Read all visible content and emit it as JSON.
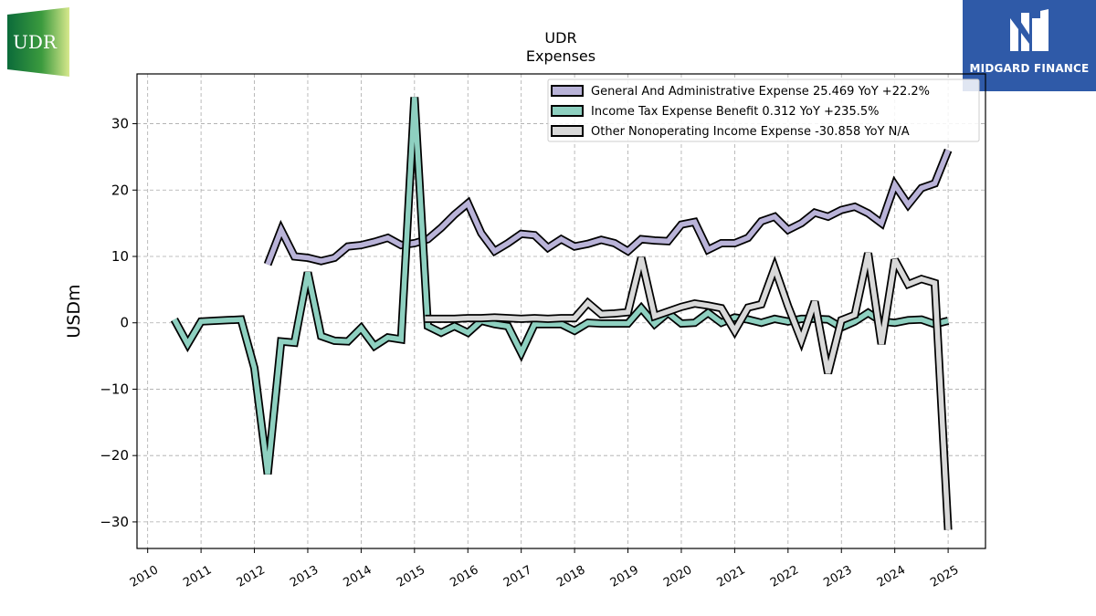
{
  "logos": {
    "left": {
      "text": "UDR",
      "colors": [
        "#0b6b3a",
        "#c9e07a"
      ]
    },
    "right": {
      "text": "MIDGARD FINANCE",
      "color": "#2f5aa8"
    }
  },
  "chart_data": {
    "type": "line",
    "title": "UDR",
    "subtitle": "Expenses",
    "ylabel": "USDm",
    "xlabel": "",
    "ylim": [
      -34,
      37.5
    ],
    "xlim": [
      2009.8,
      2025.7
    ],
    "yticks": [
      -30,
      -20,
      -10,
      0,
      10,
      20,
      30
    ],
    "xticks": [
      2010,
      2011,
      2012,
      2013,
      2014,
      2015,
      2016,
      2017,
      2018,
      2019,
      2020,
      2021,
      2022,
      2023,
      2024,
      2025
    ],
    "grid": true,
    "legend_position": "top-right",
    "series": [
      {
        "name": "General And Administrative Expense  25.469 YoY +22.2%",
        "color": "#b9b3d8",
        "points": [
          [
            2012.25,
            8.8
          ],
          [
            2012.5,
            14
          ],
          [
            2012.75,
            10
          ],
          [
            2013.0,
            9.8
          ],
          [
            2013.25,
            9.3
          ],
          [
            2013.5,
            9.8
          ],
          [
            2013.75,
            11.5
          ],
          [
            2014.0,
            11.7
          ],
          [
            2014.25,
            12.2
          ],
          [
            2014.5,
            12.8
          ],
          [
            2014.75,
            11.7
          ],
          [
            2015.0,
            12.0
          ],
          [
            2015.25,
            12.6
          ],
          [
            2015.5,
            14.3
          ],
          [
            2015.75,
            16.3
          ],
          [
            2016.0,
            18.0
          ],
          [
            2016.25,
            13.5
          ],
          [
            2016.5,
            10.8
          ],
          [
            2016.75,
            12.0
          ],
          [
            2017.0,
            13.4
          ],
          [
            2017.25,
            13.2
          ],
          [
            2017.5,
            11.3
          ],
          [
            2017.75,
            12.6
          ],
          [
            2018.0,
            11.5
          ],
          [
            2018.25,
            11.9
          ],
          [
            2018.5,
            12.5
          ],
          [
            2018.75,
            12.0
          ],
          [
            2019.0,
            10.8
          ],
          [
            2019.25,
            12.6
          ],
          [
            2019.5,
            12.4
          ],
          [
            2019.75,
            12.3
          ],
          [
            2020.0,
            14.8
          ],
          [
            2020.25,
            15.2
          ],
          [
            2020.5,
            11.0
          ],
          [
            2020.75,
            12.0
          ],
          [
            2021.0,
            12.0
          ],
          [
            2021.25,
            12.8
          ],
          [
            2021.5,
            15.3
          ],
          [
            2021.75,
            16.0
          ],
          [
            2022.0,
            14.0
          ],
          [
            2022.25,
            15.0
          ],
          [
            2022.5,
            16.6
          ],
          [
            2022.75,
            16.0
          ],
          [
            2023.0,
            17.0
          ],
          [
            2023.25,
            17.5
          ],
          [
            2023.5,
            16.5
          ],
          [
            2023.75,
            15.0
          ],
          [
            2024.0,
            20.8
          ],
          [
            2024.25,
            17.8
          ],
          [
            2024.5,
            20.3
          ],
          [
            2024.75,
            21.0
          ],
          [
            2025.0,
            26.0
          ]
        ]
      },
      {
        "name": "Income Tax Expense Benefit  0.312 YoY +235.5%",
        "color": "#8ed0c0",
        "points": [
          [
            2010.5,
            0.5
          ],
          [
            2010.75,
            -3.2
          ],
          [
            2011.0,
            0.2
          ],
          [
            2011.25,
            0.3
          ],
          [
            2011.5,
            0.4
          ],
          [
            2011.75,
            0.5
          ],
          [
            2012.0,
            -6.8
          ],
          [
            2012.25,
            -22.8
          ],
          [
            2012.5,
            -2.8
          ],
          [
            2012.75,
            -3.0
          ],
          [
            2013.0,
            7.6
          ],
          [
            2013.25,
            -2.0
          ],
          [
            2013.5,
            -2.7
          ],
          [
            2013.75,
            -2.8
          ],
          [
            2014.0,
            -0.8
          ],
          [
            2014.25,
            -3.5
          ],
          [
            2014.5,
            -2.2
          ],
          [
            2014.75,
            -2.5
          ],
          [
            2015.0,
            34.0
          ],
          [
            2015.25,
            -0.5
          ],
          [
            2015.5,
            -1.5
          ],
          [
            2015.75,
            -0.5
          ],
          [
            2016.0,
            -1.5
          ],
          [
            2016.25,
            0.3
          ],
          [
            2016.5,
            -0.2
          ],
          [
            2016.75,
            -0.5
          ],
          [
            2017.0,
            -4.5
          ],
          [
            2017.25,
            -0.2
          ],
          [
            2017.5,
            -0.2
          ],
          [
            2017.75,
            -0.2
          ],
          [
            2018.0,
            -1.2
          ],
          [
            2018.25,
            0.0
          ],
          [
            2018.5,
            -0.1
          ],
          [
            2018.75,
            -0.1
          ],
          [
            2019.0,
            -0.1
          ],
          [
            2019.25,
            2.2
          ],
          [
            2019.5,
            -0.2
          ],
          [
            2019.75,
            1.5
          ],
          [
            2020.0,
            -0.1
          ],
          [
            2020.25,
            0.0
          ],
          [
            2020.5,
            1.5
          ],
          [
            2020.75,
            0.0
          ],
          [
            2021.0,
            0.8
          ],
          [
            2021.25,
            0.5
          ],
          [
            2021.5,
            0.0
          ],
          [
            2021.75,
            0.6
          ],
          [
            2022.0,
            0.2
          ],
          [
            2022.25,
            0.6
          ],
          [
            2022.5,
            0.6
          ],
          [
            2022.75,
            0.5
          ],
          [
            2023.0,
            -0.7
          ],
          [
            2023.25,
            0.2
          ],
          [
            2023.5,
            1.5
          ],
          [
            2023.75,
            0.2
          ],
          [
            2024.0,
            0.0
          ],
          [
            2024.25,
            0.4
          ],
          [
            2024.5,
            0.5
          ],
          [
            2024.75,
            -0.2
          ],
          [
            2025.0,
            0.3
          ]
        ]
      },
      {
        "name": "Other Nonoperating Income Expense  -30.858 YoY N/A",
        "color": "#d9d9d9",
        "points": [
          [
            2015.2,
            0.6
          ],
          [
            2015.5,
            0.6
          ],
          [
            2015.75,
            0.6
          ],
          [
            2016.0,
            0.7
          ],
          [
            2016.25,
            0.7
          ],
          [
            2016.5,
            0.8
          ],
          [
            2016.75,
            0.7
          ],
          [
            2017.0,
            0.6
          ],
          [
            2017.25,
            0.7
          ],
          [
            2017.5,
            0.6
          ],
          [
            2017.75,
            0.7
          ],
          [
            2018.0,
            0.7
          ],
          [
            2018.25,
            3.0
          ],
          [
            2018.5,
            1.3
          ],
          [
            2018.75,
            1.4
          ],
          [
            2019.0,
            1.6
          ],
          [
            2019.25,
            9.8
          ],
          [
            2019.5,
            1.0
          ],
          [
            2019.75,
            1.7
          ],
          [
            2020.0,
            2.4
          ],
          [
            2020.25,
            2.9
          ],
          [
            2020.5,
            2.6
          ],
          [
            2020.75,
            2.2
          ],
          [
            2021.0,
            -1.2
          ],
          [
            2021.25,
            2.3
          ],
          [
            2021.5,
            2.8
          ],
          [
            2021.75,
            8.3
          ],
          [
            2022.0,
            2.5
          ],
          [
            2022.25,
            -2.6
          ],
          [
            2022.5,
            3.2
          ],
          [
            2022.75,
            -7.6
          ],
          [
            2023.0,
            0.4
          ],
          [
            2023.25,
            1.2
          ],
          [
            2023.5,
            10.5
          ],
          [
            2023.75,
            -3.2
          ],
          [
            2024.0,
            9.5
          ],
          [
            2024.25,
            5.8
          ],
          [
            2024.5,
            6.6
          ],
          [
            2024.75,
            6.0
          ],
          [
            2025.0,
            -31.2
          ]
        ]
      }
    ]
  }
}
